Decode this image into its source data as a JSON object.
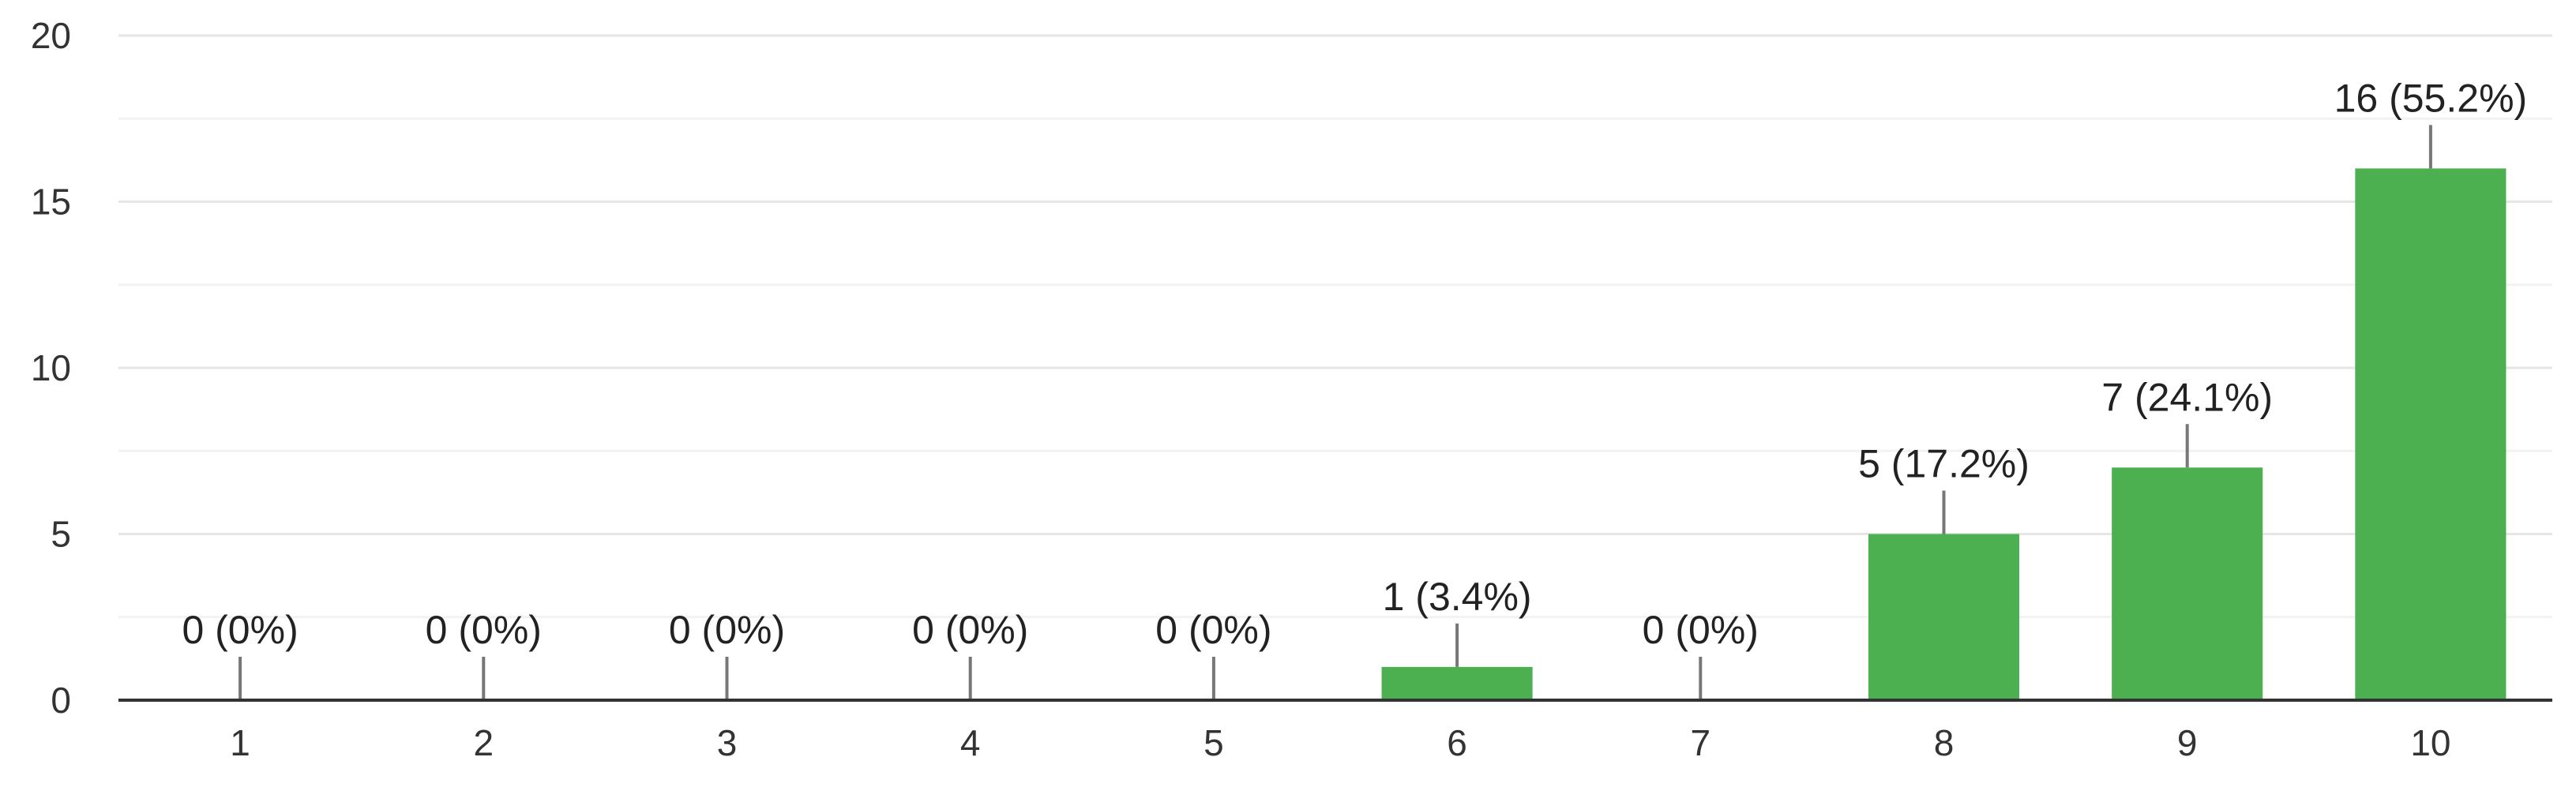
{
  "chart_data": {
    "type": "bar",
    "categories": [
      "1",
      "2",
      "3",
      "4",
      "5",
      "6",
      "7",
      "8",
      "9",
      "10"
    ],
    "values": [
      0,
      0,
      0,
      0,
      0,
      1,
      0,
      5,
      7,
      16
    ],
    "data_labels": [
      "0 (0%)",
      "0 (0%)",
      "0 (0%)",
      "0 (0%)",
      "0 (0%)",
      "1 (3.4%)",
      "0 (0%)",
      "5 (17.2%)",
      "7 (24.1%)",
      "16 (55.2%)"
    ],
    "y_ticks": [
      "0",
      "5",
      "10",
      "15",
      "20"
    ],
    "ylim": [
      0,
      20
    ],
    "y_major_step": 5,
    "y_minor_step": 2.5,
    "grid": true,
    "legend": "none",
    "title": "",
    "xlabel": "",
    "ylabel": "",
    "bar_color": "#4caf50"
  }
}
